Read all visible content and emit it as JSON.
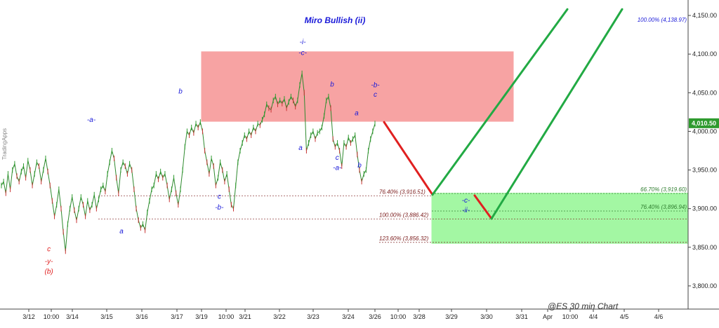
{
  "chart_data": {
    "type": "line",
    "title": "Miro Bullish (ii)",
    "footer": "@ES  30 min Chart",
    "watermark": "TradingApps",
    "ylim": [
      3770,
      4170
    ],
    "y_ticks": [
      {
        "value": 4150,
        "label": "4,150.00"
      },
      {
        "value": 4100,
        "label": "4,100.00"
      },
      {
        "value": 4050,
        "label": "4,050.00"
      },
      {
        "value": 4000,
        "label": "4,000.00"
      },
      {
        "value": 3950,
        "label": "3,950.00"
      },
      {
        "value": 3900,
        "label": "3,900.00"
      },
      {
        "value": 3850,
        "label": "3,850.00"
      },
      {
        "value": 3800,
        "label": "3,800.00"
      }
    ],
    "x_ticks": [
      "3/12",
      "10:00",
      "3/14",
      "3/15",
      "3/16",
      "3/17",
      "3/19",
      "10:00",
      "3/21",
      "3/22",
      "3/23",
      "3/24",
      "3/26",
      "10:00",
      "3/28",
      "3/29",
      "3/30",
      "3/31",
      "Apr",
      "10:00",
      "4/4",
      "4/5",
      "4/6"
    ],
    "last_price": {
      "value": 4010.5,
      "label": "4,010.50"
    },
    "price": [
      3930,
      3935,
      3920,
      3945,
      3925,
      3950,
      3958,
      3942,
      3935,
      3948,
      3955,
      3940,
      3962,
      3950,
      3930,
      3945,
      3960,
      3955,
      3935,
      3950,
      3965,
      3948,
      3930,
      3910,
      3890,
      3905,
      3925,
      3900,
      3870,
      3845,
      3880,
      3900,
      3915,
      3898,
      3885,
      3900,
      3915,
      3905,
      3890,
      3910,
      3898,
      3905,
      3918,
      3900,
      3912,
      3925,
      3930,
      3922,
      3945,
      3960,
      3975,
      3965,
      3940,
      3920,
      3950,
      3960,
      3955,
      3945,
      3958,
      3950,
      3925,
      3900,
      3885,
      3875,
      3880,
      3872,
      3895,
      3910,
      3925,
      3930,
      3945,
      3938,
      3948,
      3940,
      3945,
      3930,
      3912,
      3925,
      3940,
      3920,
      3905,
      3925,
      3950,
      3980,
      4000,
      3995,
      4005,
      3998,
      4010,
      4005,
      4012,
      4000,
      3975,
      3960,
      3945,
      3965,
      3955,
      3930,
      3940,
      3960,
      3950,
      3935,
      3945,
      3925,
      3905,
      3900,
      3930,
      3960,
      3975,
      3985,
      3995,
      3990,
      4000,
      3995,
      4005,
      4000,
      4010,
      4008,
      4015,
      4022,
      4035,
      4030,
      4028,
      4040,
      4045,
      4035,
      4040,
      4036,
      4042,
      4030,
      4038,
      4045,
      4040,
      4032,
      4040,
      4060,
      4075,
      4050,
      3975,
      3985,
      3995,
      4000,
      3990,
      3998,
      4000,
      4005,
      4020,
      4040,
      4045,
      4030,
      3990,
      3980,
      3985,
      3975,
      3955,
      3985,
      3980,
      3992,
      3985,
      3990,
      3995,
      3970,
      3950,
      3935,
      3945,
      3950,
      3975,
      3990,
      4000,
      4010
    ],
    "zones": [
      {
        "name": "resistance-zone",
        "x_from": "3/19 10:00",
        "x_to": "3/30 10:00",
        "y_from": 4013,
        "y_to": 4103,
        "color": "#f7a3a3"
      },
      {
        "name": "target-zone",
        "x_from": "3/28 10:00",
        "x_to": "4/6",
        "y_from": 3855,
        "y_to": 3920,
        "color": "#a3f7a3"
      }
    ],
    "levels": [
      {
        "label": "76.40% (3,916.51)",
        "value": 3916.51,
        "color": "#7a1a1a"
      },
      {
        "label": "100.00% (3,886.42)",
        "value": 3886.42,
        "color": "#7a1a1a"
      },
      {
        "label": "123.60% (3,856.32)",
        "value": 3856.32,
        "color": "#7a1a1a"
      },
      {
        "label": "66.70% (3,919.60)",
        "value": 3919.6,
        "color": "#2e7d2e"
      },
      {
        "label": "76.40% (3,896.94)",
        "value": 3896.94,
        "color": "#2e7d2e"
      },
      {
        "label": "100.00% (4,138.97)",
        "value": 4138.97,
        "color": "#1a1ad9"
      }
    ],
    "projections": [
      {
        "name": "red-down-1",
        "color": "#e02020",
        "points": [
          [
            0.5342,
            4012
          ],
          [
            0.6016,
            3918
          ]
        ]
      },
      {
        "name": "green-up-1",
        "color": "#22aa44",
        "points": [
          [
            0.6016,
            3918
          ],
          [
            0.7891,
            4158
          ]
        ]
      },
      {
        "name": "red-down-2",
        "color": "#e02020",
        "points": [
          [
            0.6602,
            3917
          ],
          [
            0.6836,
            3887
          ]
        ]
      },
      {
        "name": "green-up-2",
        "color": "#22aa44",
        "points": [
          [
            0.6836,
            3887
          ],
          [
            0.8652,
            4158
          ]
        ]
      }
    ],
    "wave_labels": [
      {
        "text": "-a-",
        "color": "#1a1ad9",
        "x": 0.127,
        "y": 4012
      },
      {
        "text": "b",
        "color": "#1a1ad9",
        "x": 0.251,
        "y": 4049
      },
      {
        "text": "a",
        "color": "#1a1ad9",
        "x": 0.169,
        "y": 3868
      },
      {
        "text": "c",
        "color": "#1a1ad9",
        "x": 0.305,
        "y": 3913
      },
      {
        "text": "-b-",
        "color": "#1a1ad9",
        "x": 0.305,
        "y": 3899
      },
      {
        "text": "-i-",
        "color": "#1a1ad9",
        "x": 0.421,
        "y": 4113
      },
      {
        "text": "-c-",
        "color": "#1a1ad9",
        "x": 0.421,
        "y": 4099
      },
      {
        "text": "a",
        "color": "#1a1ad9",
        "x": 0.418,
        "y": 3976
      },
      {
        "text": "b",
        "color": "#1a1ad9",
        "x": 0.462,
        "y": 4058
      },
      {
        "text": "c",
        "color": "#1a1ad9",
        "x": 0.469,
        "y": 3963
      },
      {
        "text": "-a-",
        "color": "#1a1ad9",
        "x": 0.469,
        "y": 3950
      },
      {
        "text": "a",
        "color": "#1a1ad9",
        "x": 0.496,
        "y": 4021
      },
      {
        "text": "b",
        "color": "#1a1ad9",
        "x": 0.5,
        "y": 3953
      },
      {
        "text": "-b-",
        "color": "#1a1ad9",
        "x": 0.522,
        "y": 4057
      },
      {
        "text": "c",
        "color": "#1a1ad9",
        "x": 0.522,
        "y": 4045
      },
      {
        "text": "-c-",
        "color": "#1a1ad9",
        "x": 0.648,
        "y": 3908
      },
      {
        "text": "-ii-",
        "color": "#1a1ad9",
        "x": 0.648,
        "y": 3895
      },
      {
        "text": "c",
        "color": "#e02020",
        "x": 0.068,
        "y": 3845
      },
      {
        "text": "-y-",
        "color": "#e02020",
        "x": 0.068,
        "y": 3829
      },
      {
        "text": "(b)",
        "color": "#e02020",
        "x": 0.068,
        "y": 3816
      }
    ]
  }
}
